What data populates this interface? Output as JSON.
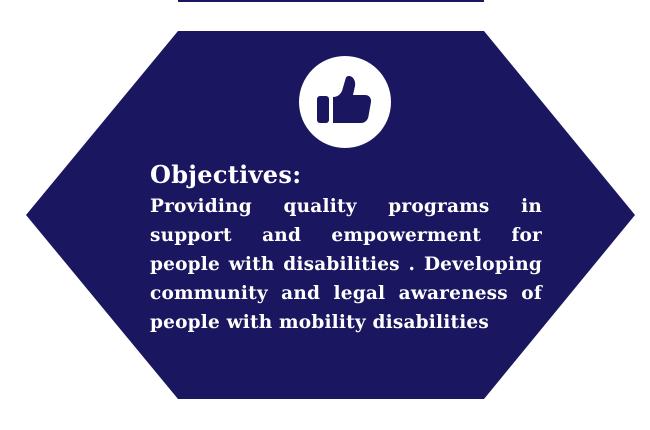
{
  "colors": {
    "panel": "#1a1760",
    "text": "#ffffff",
    "background": "#ffffff"
  },
  "icon": {
    "name": "thumbs-up-icon"
  },
  "objectives": {
    "heading": "Objectives",
    "heading_suffix": ":",
    "text": "Providing quality programs in support and empowerment for people with disabilities . Developing community and legal awareness of people with mobility disabilities"
  }
}
